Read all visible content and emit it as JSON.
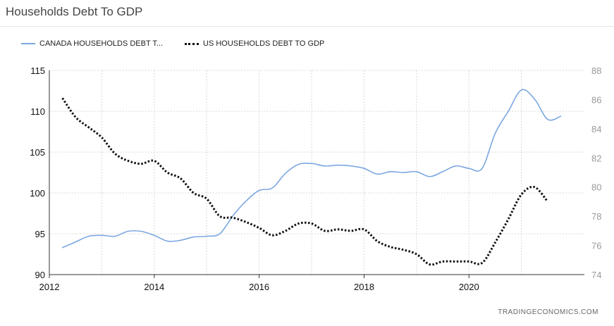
{
  "page": {
    "title": "Households Debt To GDP"
  },
  "legend": {
    "canada_label": "CANADA HOUSEHOLDS DEBT T...",
    "us_label": "US HOUSEHOLDS DEBT TO GDP"
  },
  "footer": {
    "source": "TRADINGECONOMICS.COM"
  },
  "colors": {
    "canada": "#7ba7e1",
    "us": "#111111",
    "grid": "#d9d9d9"
  },
  "chart_data": {
    "type": "line",
    "x_type": "year",
    "xlim": [
      2012,
      2022.2
    ],
    "x_ticks": [
      "2012",
      "2014",
      "2016",
      "2018",
      "2020"
    ],
    "grid": true,
    "legend_position": "top-left",
    "left_axis": {
      "ylim": [
        90,
        115
      ],
      "ticks": [
        "90",
        "95",
        "100",
        "105",
        "110",
        "115"
      ]
    },
    "right_axis": {
      "ylim": [
        74,
        88
      ],
      "ticks": [
        "74",
        "76",
        "78",
        "80",
        "82",
        "84",
        "86",
        "88"
      ]
    },
    "series": [
      {
        "name": "CANADA HOUSEHOLDS DEBT T...",
        "axis": "left",
        "style": "solid",
        "x": [
          2012.25,
          2012.5,
          2012.75,
          2013.0,
          2013.25,
          2013.5,
          2013.75,
          2014.0,
          2014.25,
          2014.5,
          2014.75,
          2015.0,
          2015.25,
          2015.5,
          2015.75,
          2016.0,
          2016.25,
          2016.5,
          2016.75,
          2017.0,
          2017.25,
          2017.5,
          2017.75,
          2018.0,
          2018.25,
          2018.5,
          2018.75,
          2019.0,
          2019.25,
          2019.5,
          2019.75,
          2020.0,
          2020.25,
          2020.5,
          2020.75,
          2021.0,
          2021.25,
          2021.5,
          2021.75
        ],
        "y": [
          93.3,
          94.0,
          94.7,
          94.8,
          94.7,
          95.3,
          95.3,
          94.8,
          94.1,
          94.2,
          94.6,
          94.7,
          95.0,
          97.2,
          99.0,
          100.3,
          100.6,
          102.4,
          103.5,
          103.6,
          103.3,
          103.4,
          103.3,
          103.0,
          102.3,
          102.6,
          102.5,
          102.6,
          102.0,
          102.6,
          103.3,
          103.0,
          103.0,
          107.3,
          110.0,
          112.6,
          111.5,
          109.0,
          109.4
        ]
      },
      {
        "name": "US HOUSEHOLDS DEBT TO GDP",
        "axis": "right",
        "style": "dotted",
        "x": [
          2012.25,
          2012.5,
          2012.75,
          2013.0,
          2013.25,
          2013.5,
          2013.75,
          2014.0,
          2014.25,
          2014.5,
          2014.75,
          2015.0,
          2015.25,
          2015.5,
          2015.75,
          2016.0,
          2016.25,
          2016.5,
          2016.75,
          2017.0,
          2017.25,
          2017.5,
          2017.75,
          2018.0,
          2018.25,
          2018.5,
          2018.75,
          2019.0,
          2019.25,
          2019.5,
          2019.75,
          2020.0,
          2020.25,
          2020.5,
          2020.75,
          2021.0,
          2021.25,
          2021.5
        ],
        "y": [
          86.1,
          84.8,
          84.1,
          83.4,
          82.3,
          81.8,
          81.6,
          81.8,
          81.0,
          80.6,
          79.6,
          79.2,
          78.0,
          77.9,
          77.6,
          77.2,
          76.7,
          77.0,
          77.5,
          77.5,
          77.0,
          77.1,
          77.0,
          77.1,
          76.3,
          75.9,
          75.7,
          75.4,
          74.7,
          74.9,
          74.9,
          74.9,
          74.8,
          76.2,
          77.8,
          79.5,
          80.0,
          79.0
        ]
      }
    ]
  }
}
